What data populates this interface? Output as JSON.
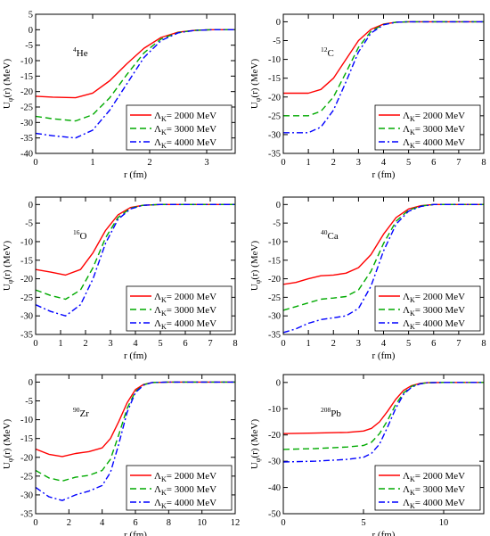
{
  "figure": {
    "legend_labels": [
      "Λ",
      "= 2000 MeV",
      "= 3000 MeV",
      "= 4000 MeV"
    ],
    "legend_subscript": "K",
    "series_colors": [
      "#ff0000",
      "#00aa00",
      "#0000ff"
    ],
    "series_dash": [
      "solid",
      "dashed",
      "dash-dot"
    ]
  },
  "chart_data": [
    {
      "type": "line",
      "nucleus": {
        "mass": "4",
        "symbol": "He"
      },
      "xlabel": "r (fm)",
      "ylabel": "Uφ(r) (MeV)",
      "xlim": [
        0,
        3.5
      ],
      "ylim": [
        -40,
        5
      ],
      "xticks": [
        0,
        1,
        2,
        3
      ],
      "yticks": [
        5,
        0,
        -5,
        -10,
        -15,
        -20,
        -25,
        -30,
        -35,
        -40
      ],
      "legend_position": "lower-right",
      "series": [
        {
          "name": "2000 MeV",
          "x": [
            0,
            0.3,
            0.7,
            1.0,
            1.3,
            1.6,
            1.9,
            2.2,
            2.5,
            2.8,
            3.1,
            3.5
          ],
          "values": [
            -21.5,
            -21.8,
            -22.0,
            -20.5,
            -16.5,
            -11.0,
            -6.0,
            -2.5,
            -0.8,
            -0.2,
            0,
            0
          ]
        },
        {
          "name": "3000 MeV",
          "x": [
            0,
            0.3,
            0.7,
            1.0,
            1.3,
            1.6,
            1.9,
            2.2,
            2.5,
            2.8,
            3.1,
            3.5
          ],
          "values": [
            -28.0,
            -28.8,
            -29.5,
            -27.5,
            -22.0,
            -14.5,
            -7.5,
            -3.0,
            -0.9,
            -0.2,
            0,
            0
          ]
        },
        {
          "name": "4000 MeV",
          "x": [
            0,
            0.3,
            0.7,
            1.0,
            1.3,
            1.6,
            1.9,
            2.2,
            2.5,
            2.8,
            3.1,
            3.5
          ],
          "values": [
            -33.5,
            -34.3,
            -35.0,
            -32.5,
            -26.0,
            -17.5,
            -9.0,
            -3.5,
            -1.0,
            -0.2,
            0,
            0
          ]
        }
      ]
    },
    {
      "type": "line",
      "nucleus": {
        "mass": "12",
        "symbol": "C"
      },
      "xlabel": "r (fm)",
      "ylabel": "Uφ(r) (MeV)",
      "xlim": [
        0,
        8
      ],
      "ylim": [
        -35,
        2
      ],
      "xticks": [
        0,
        1,
        2,
        3,
        4,
        5,
        6,
        7,
        8
      ],
      "yticks": [
        0,
        -5,
        -10,
        -15,
        -20,
        -25,
        -30,
        -35
      ],
      "legend_position": "lower-right",
      "series": [
        {
          "name": "2000 MeV",
          "x": [
            0,
            1.0,
            1.5,
            2.0,
            2.5,
            3.0,
            3.5,
            4.0,
            4.5,
            5.0,
            6.0,
            8.0
          ],
          "values": [
            -19.0,
            -19.0,
            -18.0,
            -15.0,
            -10.0,
            -5.0,
            -2.0,
            -0.6,
            -0.1,
            0,
            0,
            0
          ]
        },
        {
          "name": "3000 MeV",
          "x": [
            0,
            1.0,
            1.5,
            2.0,
            2.5,
            3.0,
            3.5,
            4.0,
            4.5,
            5.0,
            6.0,
            8.0
          ],
          "values": [
            -25.0,
            -25.0,
            -23.8,
            -20.0,
            -13.5,
            -6.8,
            -2.5,
            -0.7,
            -0.1,
            0,
            0,
            0
          ]
        },
        {
          "name": "4000 MeV",
          "x": [
            0,
            1.0,
            1.5,
            2.0,
            2.5,
            3.0,
            3.5,
            4.0,
            4.5,
            5.0,
            6.0,
            8.0
          ],
          "values": [
            -29.5,
            -29.5,
            -28.0,
            -23.5,
            -16.0,
            -8.0,
            -3.0,
            -0.8,
            -0.1,
            0,
            0,
            0
          ]
        }
      ]
    },
    {
      "type": "line",
      "nucleus": {
        "mass": "16",
        "symbol": "O"
      },
      "xlabel": "r (fm)",
      "ylabel": "Uφ(r) (MeV)",
      "xlim": [
        0,
        8
      ],
      "ylim": [
        -35,
        2
      ],
      "xticks": [
        0,
        1,
        2,
        3,
        4,
        5,
        6,
        7,
        8
      ],
      "yticks": [
        0,
        -5,
        -10,
        -15,
        -20,
        -25,
        -30,
        -35
      ],
      "legend_position": "lower-right",
      "series": [
        {
          "name": "2000 MeV",
          "x": [
            0,
            0.6,
            1.2,
            1.8,
            2.3,
            2.8,
            3.3,
            3.8,
            4.3,
            5.0,
            6.0,
            8.0
          ],
          "values": [
            -17.5,
            -18.2,
            -19.0,
            -17.5,
            -13.0,
            -7.0,
            -2.8,
            -0.8,
            -0.2,
            0,
            0,
            0
          ]
        },
        {
          "name": "3000 MeV",
          "x": [
            0,
            0.6,
            1.2,
            1.8,
            2.3,
            2.8,
            3.3,
            3.8,
            4.3,
            5.0,
            6.0,
            8.0
          ],
          "values": [
            -23.0,
            -24.5,
            -25.5,
            -23.0,
            -17.0,
            -9.0,
            -3.5,
            -1.0,
            -0.2,
            0,
            0,
            0
          ]
        },
        {
          "name": "4000 MeV",
          "x": [
            0,
            0.6,
            1.2,
            1.8,
            2.3,
            2.8,
            3.3,
            3.8,
            4.3,
            5.0,
            6.0,
            8.0
          ],
          "values": [
            -27.0,
            -28.8,
            -30.0,
            -27.0,
            -20.0,
            -10.5,
            -4.0,
            -1.2,
            -0.2,
            0,
            0,
            0
          ]
        }
      ]
    },
    {
      "type": "line",
      "nucleus": {
        "mass": "40",
        "symbol": "Ca"
      },
      "xlabel": "r (fm)",
      "ylabel": "Uφ(r) (MeV)",
      "xlim": [
        0,
        8
      ],
      "ylim": [
        -35,
        2
      ],
      "xticks": [
        0,
        1,
        2,
        3,
        4,
        5,
        6,
        7,
        8
      ],
      "yticks": [
        0,
        -5,
        -10,
        -15,
        -20,
        -25,
        -30,
        -35
      ],
      "legend_position": "lower-right",
      "series": [
        {
          "name": "2000 MeV",
          "x": [
            0,
            0.5,
            1.0,
            1.5,
            2.0,
            2.5,
            3.0,
            3.5,
            4.0,
            4.5,
            5.0,
            5.5,
            6.0,
            8.0
          ],
          "values": [
            -21.5,
            -21.0,
            -20.0,
            -19.2,
            -19.0,
            -18.5,
            -17.0,
            -13.5,
            -8.0,
            -3.5,
            -1.2,
            -0.3,
            0,
            0
          ]
        },
        {
          "name": "3000 MeV",
          "x": [
            0,
            0.5,
            1.0,
            1.5,
            2.0,
            2.5,
            3.0,
            3.5,
            4.0,
            4.5,
            5.0,
            5.5,
            6.0,
            8.0
          ],
          "values": [
            -28.5,
            -27.5,
            -26.5,
            -25.5,
            -25.2,
            -24.8,
            -23.0,
            -18.0,
            -10.5,
            -4.5,
            -1.5,
            -0.4,
            0,
            0
          ]
        },
        {
          "name": "4000 MeV",
          "x": [
            0,
            0.5,
            1.0,
            1.5,
            2.0,
            2.5,
            3.0,
            3.5,
            4.0,
            4.5,
            5.0,
            5.5,
            6.0,
            8.0
          ],
          "values": [
            -34.5,
            -33.5,
            -32.0,
            -31.0,
            -30.5,
            -30.0,
            -28.0,
            -22.0,
            -12.5,
            -5.3,
            -1.8,
            -0.5,
            0,
            0
          ]
        }
      ]
    },
    {
      "type": "line",
      "nucleus": {
        "mass": "90",
        "symbol": "Zr"
      },
      "xlabel": "r (fm)",
      "ylabel": "Uφ(r) (MeV)",
      "xlim": [
        0,
        12
      ],
      "ylim": [
        -35,
        2
      ],
      "xticks": [
        0,
        2,
        4,
        6,
        8,
        10,
        12
      ],
      "yticks": [
        0,
        -5,
        -10,
        -15,
        -20,
        -25,
        -30,
        -35
      ],
      "legend_position": "lower-right",
      "series": [
        {
          "name": "2000 MeV",
          "x": [
            0,
            0.8,
            1.6,
            2.4,
            3.2,
            4.0,
            4.5,
            5.0,
            5.5,
            6.0,
            6.5,
            7.0,
            8.0,
            12.0
          ],
          "values": [
            -17.8,
            -19.2,
            -19.8,
            -19.0,
            -18.5,
            -17.5,
            -15.0,
            -10.5,
            -5.5,
            -2.0,
            -0.6,
            -0.1,
            0,
            0
          ]
        },
        {
          "name": "3000 MeV",
          "x": [
            0,
            0.8,
            1.6,
            2.4,
            3.2,
            4.0,
            4.5,
            5.0,
            5.5,
            6.0,
            6.5,
            7.0,
            8.0,
            12.0
          ],
          "values": [
            -23.5,
            -25.5,
            -26.3,
            -25.3,
            -24.8,
            -23.5,
            -20.5,
            -14.0,
            -7.0,
            -2.5,
            -0.7,
            -0.1,
            0,
            0
          ]
        },
        {
          "name": "4000 MeV",
          "x": [
            0,
            0.8,
            1.6,
            2.4,
            3.2,
            4.0,
            4.5,
            5.0,
            5.5,
            6.0,
            6.5,
            7.0,
            8.0,
            12.0
          ],
          "values": [
            -28.0,
            -30.5,
            -31.5,
            -30.0,
            -29.0,
            -27.5,
            -24.0,
            -16.5,
            -8.0,
            -2.8,
            -0.8,
            -0.1,
            0,
            0
          ]
        }
      ]
    },
    {
      "type": "line",
      "nucleus": {
        "mass": "208",
        "symbol": "Pb"
      },
      "xlabel": "r (fm)",
      "ylabel": "Uφ(r) (MeV)",
      "xlim": [
        0,
        12.5
      ],
      "ylim": [
        -50,
        3
      ],
      "xticks": [
        0,
        5,
        10
      ],
      "yticks": [
        0,
        -10,
        -20,
        -30,
        -40,
        -50
      ],
      "legend_position": "lower-right",
      "series": [
        {
          "name": "2000 MeV",
          "x": [
            0,
            2.0,
            4.0,
            5.0,
            5.5,
            6.0,
            6.5,
            7.0,
            7.5,
            8.0,
            8.5,
            9.0,
            10.0,
            12.5
          ],
          "values": [
            -19.5,
            -19.3,
            -19.0,
            -18.5,
            -17.5,
            -15.0,
            -11.0,
            -6.5,
            -3.0,
            -1.2,
            -0.4,
            -0.1,
            0,
            0
          ]
        },
        {
          "name": "3000 MeV",
          "x": [
            0,
            2.0,
            4.0,
            5.0,
            5.5,
            6.0,
            6.5,
            7.0,
            7.5,
            8.0,
            8.5,
            9.0,
            10.0,
            12.5
          ],
          "values": [
            -25.5,
            -25.2,
            -24.6,
            -24.0,
            -22.8,
            -19.5,
            -14.5,
            -8.5,
            -4.0,
            -1.5,
            -0.5,
            -0.1,
            0,
            0
          ]
        },
        {
          "name": "4000 MeV",
          "x": [
            0,
            2.0,
            4.0,
            5.0,
            5.5,
            6.0,
            6.5,
            7.0,
            7.5,
            8.0,
            8.5,
            9.0,
            10.0,
            12.5
          ],
          "values": [
            -30.3,
            -30.0,
            -29.3,
            -28.5,
            -27.0,
            -23.5,
            -17.0,
            -10.0,
            -4.5,
            -1.8,
            -0.6,
            -0.1,
            0,
            0
          ]
        }
      ]
    }
  ]
}
